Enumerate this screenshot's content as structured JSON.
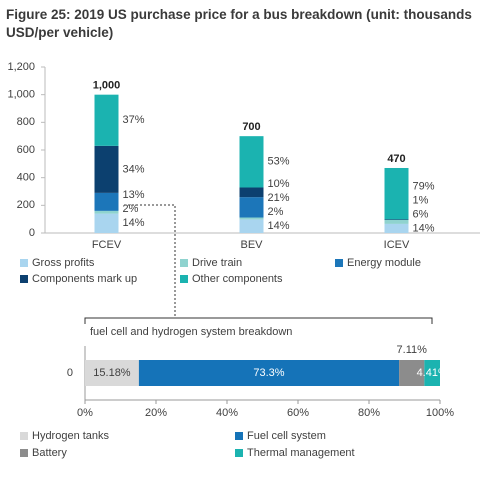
{
  "chart_data": [
    {
      "type": "bar",
      "stacked": true,
      "title": "Figure 25: 2019 US purchase price for a bus breakdown (unit: thousands USD/per vehicle)",
      "categories": [
        "FCEV",
        "BEV",
        "ICEV"
      ],
      "series": [
        {
          "name": "Gross profits",
          "color": "#a9d5ef",
          "values": [
            140,
            98,
            65.8
          ],
          "value_labels": [
            "14%",
            "14%",
            "14%"
          ]
        },
        {
          "name": "Drive train",
          "color": "#8fd3cf",
          "values": [
            20,
            14,
            28.2
          ],
          "value_labels": [
            "2%",
            "2%",
            "6%"
          ]
        },
        {
          "name": "Energy module",
          "color": "#1c76b9",
          "values": [
            130,
            147,
            null
          ],
          "value_labels": [
            "13%",
            "21%",
            null
          ]
        },
        {
          "name": "Components mark up",
          "color": "#0c406f",
          "values": [
            340,
            70,
            4.7
          ],
          "value_labels": [
            "34%",
            "10%",
            "1%"
          ]
        },
        {
          "name": "Other components",
          "color": "#1bb3b0",
          "values": [
            370,
            371,
            371.3
          ],
          "value_labels": [
            "37%",
            "53%",
            "79%"
          ]
        }
      ],
      "totals": [
        1000,
        700,
        470
      ],
      "total_labels": [
        "1,000",
        "700",
        "470"
      ],
      "ylim": [
        0,
        1200
      ],
      "yticks": [
        0,
        200,
        400,
        600,
        800,
        {
          "value": 1000,
          "label": "1,000"
        },
        {
          "value": 1200,
          "label": "1,200"
        }
      ],
      "legend": "bottom"
    },
    {
      "type": "barh",
      "stacked": true,
      "subtitle": "fuel cell and hydrogen system breakdown",
      "categories": [
        "0"
      ],
      "series": [
        {
          "name": "Hydrogen tanks",
          "color": "#d9d9d9",
          "values": [
            15.18
          ],
          "value_labels": [
            "15.18%"
          ]
        },
        {
          "name": "Fuel cell system",
          "color": "#1573b8",
          "values": [
            73.3
          ],
          "value_labels": [
            "73.3%"
          ]
        },
        {
          "name": "Battery",
          "color": "#8c8c8c",
          "values": [
            7.11
          ],
          "value_labels": [
            "7.11%"
          ]
        },
        {
          "name": "Thermal management",
          "color": "#1bb3b0",
          "values": [
            4.41
          ],
          "value_labels": [
            "4.41%"
          ]
        }
      ],
      "xlim": [
        0,
        100
      ],
      "xticks": [
        {
          "value": 0,
          "label": "0%"
        },
        {
          "value": 20,
          "label": "20%"
        },
        {
          "value": 40,
          "label": "40%"
        },
        {
          "value": 60,
          "label": "60%"
        },
        {
          "value": 80,
          "label": "80%"
        },
        {
          "value": 100,
          "label": "100%"
        }
      ],
      "legend": "bottom"
    }
  ]
}
